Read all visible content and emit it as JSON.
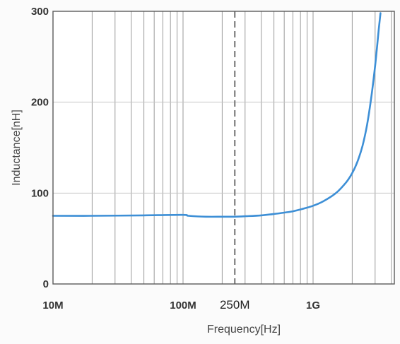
{
  "chart_data": {
    "type": "line",
    "title": "",
    "xlabel": "Frequency[Hz]",
    "ylabel": "Inductance[nH]",
    "x_scale": "log",
    "xlim": [
      10000000,
      5000000000
    ],
    "ylim": [
      0,
      300
    ],
    "grid": true,
    "x_ticks": [
      {
        "value": 10000000,
        "label": "10M"
      },
      {
        "value": 100000000,
        "label": "100M"
      },
      {
        "value": 1000000000,
        "label": "1G"
      }
    ],
    "y_ticks": [
      {
        "value": 0,
        "label": "0"
      },
      {
        "value": 100,
        "label": "100"
      },
      {
        "value": 200,
        "label": "200"
      },
      {
        "value": 300,
        "label": "300"
      }
    ],
    "annotations": [
      {
        "type": "vertical-dashed-line",
        "x": 250000000,
        "label": "250M"
      }
    ],
    "series": [
      {
        "color": "#3d8fd6",
        "x": [
          10000000,
          20000000,
          50000000,
          100000000,
          110000000,
          150000000,
          200000000,
          250000000,
          300000000,
          400000000,
          500000000,
          600000000,
          700000000,
          800000000,
          1000000000,
          1200000000,
          1500000000,
          1800000000,
          2000000000,
          2200000000,
          2400000000,
          2600000000,
          2800000000,
          3000000000,
          3200000000,
          3300000000
        ],
        "y": [
          75,
          75,
          75.5,
          76,
          75,
          74,
          74,
          74,
          74.5,
          75.5,
          77,
          78.5,
          80,
          82,
          86,
          91,
          100,
          112,
          122,
          135,
          152,
          175,
          205,
          240,
          280,
          298
        ]
      }
    ]
  }
}
